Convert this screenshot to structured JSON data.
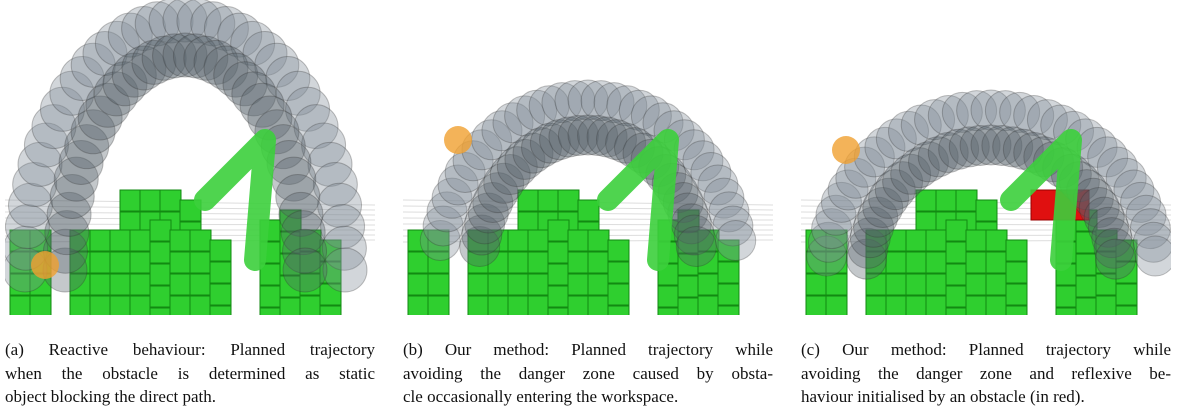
{
  "figures": [
    {
      "caption": [
        "(a) Reactive behaviour: Planned trajectory",
        "when the obstacle is determined as static",
        "object blocking the direct path."
      ]
    },
    {
      "caption": [
        "(b) Our method: Planned trajectory while",
        "avoiding the danger zone caused by obsta-",
        "cle occasionally entering the workspace."
      ]
    },
    {
      "caption": [
        "(c) Our method: Planned trajectory while",
        "avoiding the danger zone and reflexive be-",
        "haviour initialised by an obstacle (in red)."
      ]
    }
  ]
}
